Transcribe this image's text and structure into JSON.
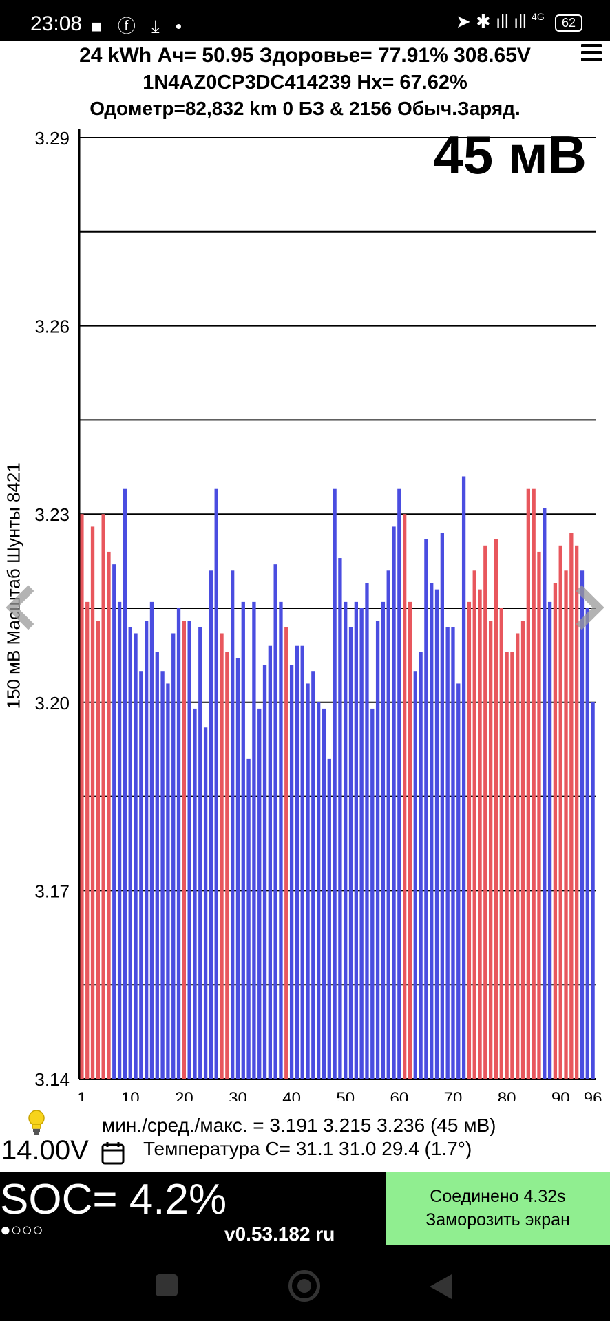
{
  "status_bar": {
    "time": "23:08",
    "left_icons": "■ ⓕ ⤓ •",
    "network": "4G",
    "battery": "62",
    "right_icons": "➤ ✱ ıll ıll"
  },
  "header": {
    "line1": "24 kWh  Ач= 50.95  Здоровье= 77.91%   308.65V",
    "line2": "1N4AZ0CP3DC414239   Hx= 67.62%",
    "line3": "Одометр=82,832 km 0 БЗ & 2156 Обыч.Заряд."
  },
  "big_value": "45 мВ",
  "y_axis_title": "150 мВ Масштаб  Шунты 8421",
  "summary": "мин./сред./макс. = 3.191  3.215  3.236  (45 мВ)",
  "voltage_12v": "14.00V",
  "temperature": "Температура C= 31.1   31.0   29.4   (1.7°)",
  "soc": "SOC= 4.2%",
  "dots": "●○○○",
  "version": "v0.53.182 ru",
  "connection": {
    "line1": "Соединено 4.32s",
    "line2": "Заморозить экран"
  },
  "colors": {
    "blue": "#4a4de0",
    "red": "#e8575d",
    "connection_bg": "#90ee90"
  },
  "chart_data": {
    "type": "bar",
    "ylim": [
      3.14,
      3.29
    ],
    "yticks": [
      "3.29",
      "3.26",
      "3.23",
      "3.20",
      "3.17",
      "3.14"
    ],
    "xticks": [
      "1",
      "10",
      "20",
      "30",
      "40",
      "50",
      "60",
      "70",
      "80",
      "90",
      "96"
    ],
    "categories": [
      1,
      2,
      3,
      4,
      5,
      6,
      7,
      8,
      9,
      10,
      11,
      12,
      13,
      14,
      15,
      16,
      17,
      18,
      19,
      20,
      21,
      22,
      23,
      24,
      25,
      26,
      27,
      28,
      29,
      30,
      31,
      32,
      33,
      34,
      35,
      36,
      37,
      38,
      39,
      40,
      41,
      42,
      43,
      44,
      45,
      46,
      47,
      48,
      49,
      50,
      51,
      52,
      53,
      54,
      55,
      56,
      57,
      58,
      59,
      60,
      61,
      62,
      63,
      64,
      65,
      66,
      67,
      68,
      69,
      70,
      71,
      72,
      73,
      74,
      75,
      76,
      77,
      78,
      79,
      80,
      81,
      82,
      83,
      84,
      85,
      86,
      87,
      88,
      89,
      90,
      91,
      92,
      93,
      94,
      95,
      96
    ],
    "values": [
      3.23,
      3.216,
      3.228,
      3.213,
      3.23,
      3.224,
      3.222,
      3.216,
      3.234,
      3.212,
      3.211,
      3.205,
      3.213,
      3.216,
      3.208,
      3.205,
      3.203,
      3.211,
      3.215,
      3.213,
      3.213,
      3.199,
      3.212,
      3.196,
      3.221,
      3.234,
      3.211,
      3.208,
      3.221,
      3.207,
      3.216,
      3.191,
      3.216,
      3.199,
      3.206,
      3.209,
      3.222,
      3.216,
      3.212,
      3.206,
      3.209,
      3.209,
      3.203,
      3.205,
      3.2,
      3.199,
      3.191,
      3.234,
      3.223,
      3.216,
      3.212,
      3.216,
      3.215,
      3.219,
      3.199,
      3.213,
      3.216,
      3.221,
      3.228,
      3.234,
      3.23,
      3.216,
      3.205,
      3.208,
      3.226,
      3.219,
      3.218,
      3.227,
      3.212,
      3.212,
      3.203,
      3.236,
      3.216,
      3.221,
      3.218,
      3.225,
      3.213,
      3.226,
      3.215,
      3.208,
      3.208,
      3.211,
      3.213,
      3.234,
      3.234,
      3.224,
      3.231,
      3.216,
      3.219,
      3.225,
      3.221,
      3.227,
      3.225,
      3.221,
      3.215,
      3.2
    ],
    "series_colors": [
      "red",
      "red",
      "red",
      "red",
      "red",
      "red",
      "blue",
      "blue",
      "blue",
      "blue",
      "blue",
      "blue",
      "blue",
      "blue",
      "blue",
      "blue",
      "blue",
      "blue",
      "blue",
      "red",
      "blue",
      "blue",
      "blue",
      "blue",
      "blue",
      "blue",
      "red",
      "red",
      "blue",
      "blue",
      "blue",
      "blue",
      "blue",
      "blue",
      "blue",
      "blue",
      "blue",
      "blue",
      "red",
      "blue",
      "blue",
      "blue",
      "blue",
      "blue",
      "blue",
      "blue",
      "blue",
      "blue",
      "blue",
      "blue",
      "blue",
      "blue",
      "blue",
      "blue",
      "blue",
      "blue",
      "blue",
      "blue",
      "blue",
      "blue",
      "red",
      "red",
      "blue",
      "blue",
      "blue",
      "blue",
      "blue",
      "blue",
      "blue",
      "blue",
      "blue",
      "blue",
      "red",
      "red",
      "red",
      "red",
      "red",
      "red",
      "red",
      "red",
      "red",
      "red",
      "red",
      "red",
      "red",
      "red",
      "blue",
      "blue",
      "red",
      "red",
      "red",
      "red",
      "red",
      "blue",
      "blue",
      "blue"
    ],
    "grid": true,
    "legend": "none"
  }
}
